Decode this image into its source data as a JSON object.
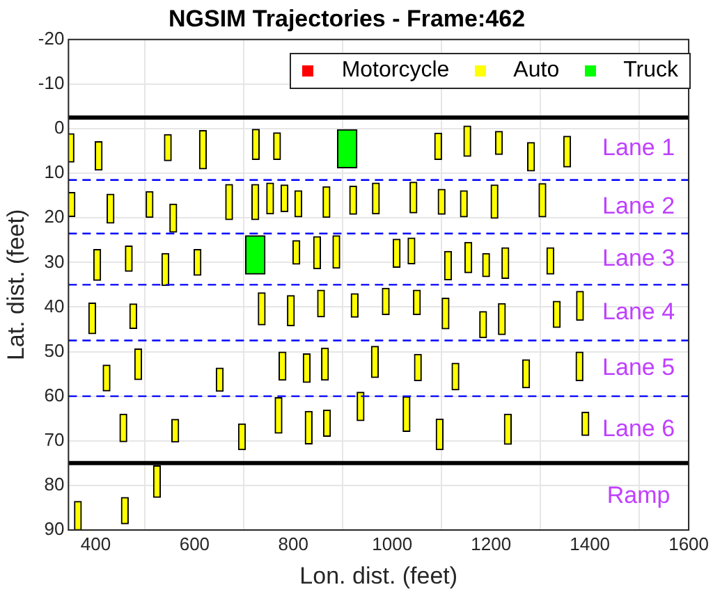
{
  "chart_data": {
    "type": "bar",
    "title": "NGSIM Trajectories - Frame:462",
    "xlabel": "Lon. dist. (feet)",
    "ylabel": "Lat. dist. (feet)",
    "xlim": [
      345,
      1600
    ],
    "xticks": [
      400,
      600,
      800,
      1000,
      1200,
      1400,
      1600
    ],
    "ylim": [
      90,
      -20
    ],
    "yticks": [
      -20,
      -10,
      0,
      10,
      20,
      30,
      40,
      50,
      60,
      70,
      80,
      90
    ],
    "grid": true,
    "legend": "top right",
    "series": [
      {
        "name": "Motorcycle",
        "color": "#ff0000"
      },
      {
        "name": "Auto",
        "color": "#ffff00",
        "x": [
          349,
          351,
          364,
          393,
          403,
          406,
          422,
          430,
          456,
          459,
          467,
          476,
          486,
          509,
          524,
          541,
          546,
          557,
          561,
          606,
          617,
          651,
          670,
          696,
          723,
          724,
          736,
          753,
          767,
          770,
          778,
          782,
          795,
          806,
          810,
          827,
          831,
          848,
          856,
          864,
          867,
          868,
          887,
          921,
          924,
          936,
          965,
          967,
          987,
          1009,
          1029,
          1039,
          1043,
          1050,
          1052,
          1093,
          1096,
          1100,
          1108,
          1113,
          1128,
          1145,
          1152,
          1154,
          1184,
          1190,
          1207,
          1216,
          1222,
          1229,
          1234,
          1271,
          1281,
          1304,
          1320,
          1333,
          1354,
          1379,
          1380,
          1391
        ],
        "base": [
          1.1,
          14.3,
          83.6,
          39.1,
          27.1,
          2.9,
          53.0,
          14.7,
          64.0,
          82.7,
          26.3,
          39.3,
          49.4,
          14.1,
          75.6,
          28.0,
          1.3,
          16.9,
          65.2,
          27.1,
          0.4,
          53.7,
          12.5,
          66.2,
          12.5,
          0,
          36.8,
          12.2,
          0.9,
          60.3,
          50.1,
          12.6,
          37.4,
          25.1,
          13.9,
          50.5,
          63.4,
          24.2,
          36.2,
          49.2,
          13.0,
          63.1,
          24.0,
          12.9,
          37.0,
          59.1,
          48.8,
          12.2,
          35.8,
          24.8,
          60.1,
          24.5,
          12.0,
          36.2,
          50.6,
          1.0,
          65.1,
          13.6,
          38.0,
          27.5,
          52.6,
          13.9,
          -0.6,
          25.5,
          41.0,
          28.0,
          12.6,
          0.6,
          39.2,
          26.7,
          64.0,
          51.8,
          3.1,
          12.3,
          26.7,
          38.7,
          1.7,
          50.1,
          36.5,
          63.6
        ],
        "values": [
          6.4,
          5.4,
          6.4,
          6.9,
          6.9,
          6.4,
          5.8,
          6.5,
          6.2,
          5.9,
          5.7,
          5.5,
          6.9,
          5.8,
          7.1,
          7.2,
          5.9,
          6.3,
          5.1,
          5.8,
          8.6,
          5.2,
          7.9,
          5.8,
          7.9,
          6.9,
          7.2,
          6.9,
          6.0,
          8.0,
          6.3,
          6.0,
          6.8,
          5.3,
          5.9,
          6.4,
          7.3,
          7.2,
          6.0,
          7.2,
          6.9,
          5.9,
          7.3,
          6.3,
          5.3,
          6.4,
          7.0,
          6.9,
          5.9,
          6.3,
          7.8,
          5.8,
          6.9,
          5.5,
          5.9,
          5.9,
          6.9,
          5.6,
          6.9,
          6.4,
          6.0,
          5.9,
          6.8,
          6.8,
          5.9,
          5.2,
          7.5,
          5.2,
          7.0,
          6.9,
          6.8,
          6.3,
          6.4,
          7.5,
          5.9,
          5.9,
          6.9,
          6.4,
          6.5,
          5.2
        ]
      },
      {
        "name": "Truck",
        "color": "#00ff00",
        "x": [
          723,
          909
        ],
        "base": [
          24.0,
          0.2
        ],
        "values": [
          8.6,
          8.6
        ]
      }
    ],
    "ref_lines": [
      {
        "axis": "y",
        "value": -2.5,
        "color": "#000000",
        "line_style": "solid"
      },
      {
        "axis": "y",
        "value": 11.5,
        "color": "#0000ff",
        "line_style": "dashed"
      },
      {
        "axis": "y",
        "value": 23.5,
        "color": "#0000ff",
        "line_style": "dashed"
      },
      {
        "axis": "y",
        "value": 35,
        "color": "#0000ff",
        "line_style": "dashed"
      },
      {
        "axis": "y",
        "value": 47.5,
        "color": "#0000ff",
        "line_style": "dashed"
      },
      {
        "axis": "y",
        "value": 60,
        "color": "#0000ff",
        "line_style": "dashed"
      },
      {
        "axis": "y",
        "value": 75,
        "color": "#000000",
        "line_style": "solid"
      }
    ],
    "annotations": [
      "Lane 1",
      "Lane 2",
      "Lane 3",
      "Lane 4",
      "Lane 5",
      "Lane 6",
      "Ramp"
    ]
  }
}
